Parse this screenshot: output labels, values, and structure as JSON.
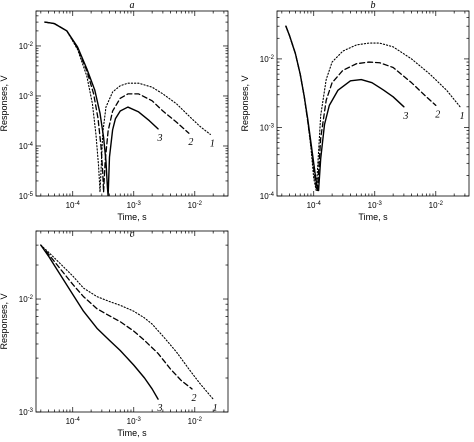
{
  "chart_data": [
    {
      "type": "line",
      "panel": "a",
      "title": "a",
      "xlabel": "Time, s",
      "ylabel": "Responses, V",
      "xscale": "log",
      "yscale": "log",
      "xlim": [
        2.5e-05,
        0.035
      ],
      "ylim": [
        1e-05,
        0.05
      ],
      "xticks": [
        0.0001,
        0.001,
        0.01
      ],
      "xtick_labels": [
        "10-4",
        "10-3",
        "10-2"
      ],
      "yticks": [
        1e-05,
        0.0001,
        0.001,
        0.01
      ],
      "ytick_labels": [
        "10-5",
        "10-4",
        "10-3",
        "10-2"
      ],
      "series": [
        {
          "name": "1",
          "style": "dotted",
          "x": [
            3.5e-05,
            5e-05,
            8e-05,
            0.00012,
            0.00017,
            0.00021,
            0.00024,
            0.000265,
            0.00028,
            0.00029,
            0.00031,
            0.00035,
            0.00045,
            0.0006,
            0.0008,
            0.0012,
            0.002,
            0.003,
            0.005,
            0.008,
            0.012,
            0.018
          ],
          "y": [
            0.03,
            0.028,
            0.02,
            0.0085,
            0.0025,
            0.0007,
            0.00017,
            4e-05,
            1.2e-05,
            3e-05,
            0.00018,
            0.0006,
            0.0012,
            0.0016,
            0.0018,
            0.0018,
            0.0015,
            0.0011,
            0.0007,
            0.0004,
            0.00025,
            0.00017
          ]
        },
        {
          "name": "2",
          "style": "dashed",
          "x": [
            3.5e-05,
            5e-05,
            8e-05,
            0.00012,
            0.00017,
            0.00022,
            0.00026,
            0.00029,
            0.00031,
            0.00032,
            0.00034,
            0.00038,
            0.00045,
            0.0006,
            0.0008,
            0.0012,
            0.002,
            0.003,
            0.005,
            0.008
          ],
          "y": [
            0.03,
            0.028,
            0.02,
            0.009,
            0.0032,
            0.0011,
            0.00035,
            0.0001,
            3e-05,
            1.2e-05,
            5e-05,
            0.0002,
            0.0005,
            0.0009,
            0.0011,
            0.0011,
            0.0008,
            0.0005,
            0.0003,
            0.00018
          ]
        },
        {
          "name": "3",
          "style": "solid",
          "x": [
            3.5e-05,
            5e-05,
            8e-05,
            0.00012,
            0.00017,
            0.00023,
            0.00028,
            0.00032,
            0.00035,
            0.00037,
            0.00038,
            0.0004,
            0.00045,
            0.0005,
            0.0006,
            0.0008,
            0.0012,
            0.0018,
            0.0025
          ],
          "y": [
            0.03,
            0.028,
            0.02,
            0.0095,
            0.0035,
            0.0013,
            0.00045,
            0.00015,
            5e-05,
            1.5e-05,
            1e-05,
            6e-05,
            0.00021,
            0.00035,
            0.0005,
            0.0006,
            0.00048,
            0.00032,
            0.00022
          ]
        }
      ]
    },
    {
      "type": "line",
      "panel": "b",
      "title": "b",
      "xlabel": "Time, s",
      "ylabel": "Responses, V",
      "xscale": "log",
      "yscale": "log",
      "xlim": [
        2.5e-05,
        0.035
      ],
      "ylim": [
        0.0001,
        0.05
      ],
      "xticks": [
        0.0001,
        0.001,
        0.01
      ],
      "xtick_labels": [
        "10-4",
        "10-3",
        "10-2"
      ],
      "yticks": [
        0.0001,
        0.001,
        0.01
      ],
      "ytick_labels": [
        "10-4",
        "10-3",
        "10-2"
      ],
      "series": [
        {
          "name": "1",
          "style": "dotted",
          "x": [
            3.5e-05,
            4e-05,
            5e-05,
            6e-05,
            7e-05,
            8e-05,
            9e-05,
            0.0001,
            0.00011,
            0.00013,
            0.00016,
            0.0002,
            0.0003,
            0.0005,
            0.0008,
            0.0012,
            0.002,
            0.004,
            0.008,
            0.015,
            0.025
          ],
          "y": [
            0.03,
            0.022,
            0.012,
            0.006,
            0.0028,
            0.0012,
            0.0005,
            0.00018,
            0.00012,
            0.0015,
            0.005,
            0.009,
            0.013,
            0.016,
            0.017,
            0.017,
            0.015,
            0.01,
            0.006,
            0.0035,
            0.002
          ]
        },
        {
          "name": "2",
          "style": "dashed",
          "x": [
            3.5e-05,
            4e-05,
            5e-05,
            6e-05,
            7e-05,
            8e-05,
            9e-05,
            0.0001,
            0.00011,
            0.000115,
            0.00013,
            0.00016,
            0.0002,
            0.0003,
            0.0005,
            0.0008,
            0.0012,
            0.002,
            0.004,
            0.007,
            0.01
          ],
          "y": [
            0.03,
            0.022,
            0.012,
            0.006,
            0.0028,
            0.0012,
            0.00055,
            0.00025,
            0.00013,
            0.00012,
            0.0007,
            0.0025,
            0.0045,
            0.0068,
            0.0085,
            0.009,
            0.0088,
            0.0075,
            0.0045,
            0.0028,
            0.0021
          ]
        },
        {
          "name": "3",
          "style": "solid",
          "x": [
            3.5e-05,
            4e-05,
            5e-05,
            6e-05,
            7e-05,
            8e-05,
            9e-05,
            0.0001,
            0.00011,
            0.00012,
            0.00013,
            0.00015,
            0.00018,
            0.00025,
            0.0004,
            0.0006,
            0.0009,
            0.0014,
            0.002,
            0.003
          ],
          "y": [
            0.03,
            0.022,
            0.012,
            0.006,
            0.0028,
            0.0013,
            0.0006,
            0.0003,
            0.00016,
            0.00012,
            0.00035,
            0.0011,
            0.0021,
            0.0035,
            0.0048,
            0.005,
            0.0045,
            0.0035,
            0.0028,
            0.002
          ]
        }
      ]
    },
    {
      "type": "line",
      "panel": "c",
      "title": "c",
      "xlabel": "Time, s",
      "ylabel": "Responses, V",
      "xscale": "log",
      "yscale": "log",
      "xlim": [
        2.5e-05,
        0.035
      ],
      "ylim": [
        0.001,
        0.04
      ],
      "xticks": [
        0.0001,
        0.001,
        0.01
      ],
      "xtick_labels": [
        "10-4",
        "10-3",
        "10-2"
      ],
      "yticks": [
        0.001,
        0.01
      ],
      "ytick_labels": [
        "10-3",
        "10-2"
      ],
      "series": [
        {
          "name": "1",
          "style": "dotted",
          "x": [
            3e-05,
            4e-05,
            6e-05,
            0.0001,
            0.00015,
            0.00025,
            0.0004,
            0.0006,
            0.001,
            0.0015,
            0.002,
            0.003,
            0.005,
            0.008,
            0.012,
            0.02
          ],
          "y": [
            0.03,
            0.026,
            0.021,
            0.016,
            0.0125,
            0.0105,
            0.0095,
            0.0088,
            0.0078,
            0.0068,
            0.006,
            0.0047,
            0.0034,
            0.0024,
            0.0018,
            0.0013
          ]
        },
        {
          "name": "2",
          "style": "dashed",
          "x": [
            3e-05,
            4e-05,
            6e-05,
            0.0001,
            0.00015,
            0.00025,
            0.0004,
            0.0006,
            0.001,
            0.0015,
            0.0025,
            0.004,
            0.006,
            0.009
          ],
          "y": [
            0.03,
            0.025,
            0.019,
            0.0135,
            0.0105,
            0.0082,
            0.0071,
            0.0063,
            0.0052,
            0.0043,
            0.0033,
            0.0024,
            0.0019,
            0.0016
          ]
        },
        {
          "name": "3",
          "style": "solid",
          "x": [
            3e-05,
            4e-05,
            6e-05,
            0.0001,
            0.00015,
            0.00025,
            0.0004,
            0.0006,
            0.001,
            0.0015,
            0.002,
            0.0025
          ],
          "y": [
            0.03,
            0.024,
            0.017,
            0.011,
            0.0078,
            0.0055,
            0.0043,
            0.0035,
            0.0026,
            0.002,
            0.0016,
            0.0013
          ]
        }
      ]
    }
  ]
}
